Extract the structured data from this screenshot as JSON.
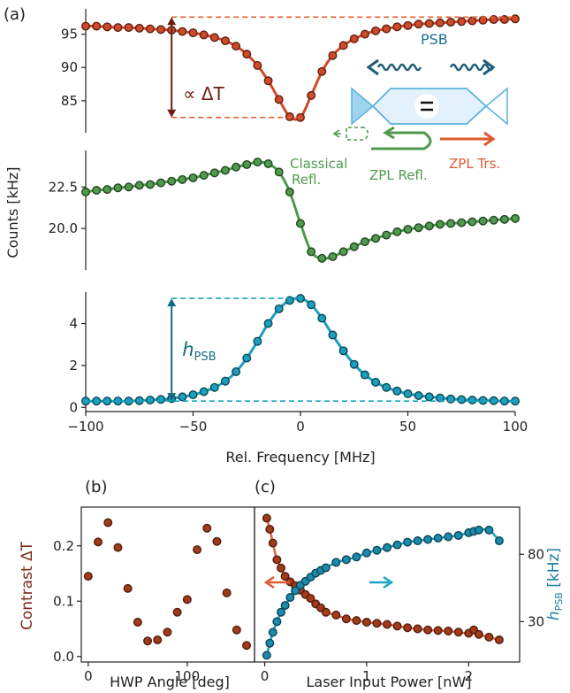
{
  "chart_data": [
    {
      "panel": "(a)",
      "type": "scatter",
      "xlabel": "Rel. Frequency [MHz]",
      "ylabel": "Counts [kHz]",
      "xlim": [
        -100,
        100
      ],
      "xticks": [
        -100,
        -50,
        0,
        50,
        100
      ],
      "subplots": [
        {
          "id": "transmission",
          "ylim": [
            80.2,
            98.8
          ],
          "yticks": [
            85,
            90,
            95
          ],
          "color": "#d04a2a",
          "annotation": "∝ ΔT",
          "x": [
            -100,
            -95,
            -90,
            -85,
            -80,
            -75,
            -70,
            -65,
            -60,
            -55,
            -50,
            -45,
            -40,
            -35,
            -30,
            -25,
            -20,
            -15,
            -10,
            -5,
            0,
            5,
            10,
            15,
            20,
            25,
            30,
            35,
            40,
            45,
            50,
            55,
            60,
            65,
            70,
            75,
            80,
            85,
            90,
            95,
            100
          ],
          "y": [
            96.2,
            96.2,
            96.1,
            96.0,
            96.0,
            95.9,
            95.8,
            95.7,
            95.6,
            95.4,
            95.2,
            94.9,
            94.5,
            94.0,
            93.2,
            92.0,
            90.3,
            88.0,
            85.2,
            82.6,
            82.5,
            85.8,
            89.4,
            91.8,
            93.3,
            94.3,
            95.0,
            95.5,
            95.8,
            96.1,
            96.3,
            96.5,
            96.6,
            96.7,
            96.8,
            96.9,
            97.0,
            97.1,
            97.2,
            97.2,
            97.3
          ]
        },
        {
          "id": "reflection",
          "ylim": [
            17.5,
            24.7
          ],
          "yticks": [
            20.0,
            22.5
          ],
          "color": "#4e9a4e",
          "x": [
            -100,
            -95,
            -90,
            -85,
            -80,
            -75,
            -70,
            -65,
            -60,
            -55,
            -50,
            -45,
            -40,
            -35,
            -30,
            -25,
            -20,
            -15,
            -10,
            -5,
            0,
            5,
            10,
            15,
            20,
            25,
            30,
            35,
            40,
            45,
            50,
            55,
            60,
            65,
            70,
            75,
            80,
            85,
            90,
            95,
            100
          ],
          "y": [
            22.2,
            22.3,
            22.35,
            22.45,
            22.5,
            22.6,
            22.65,
            22.75,
            22.85,
            22.95,
            23.05,
            23.2,
            23.35,
            23.5,
            23.7,
            23.85,
            24.0,
            23.9,
            23.4,
            22.2,
            20.3,
            18.6,
            18.2,
            18.3,
            18.6,
            18.9,
            19.2,
            19.4,
            19.6,
            19.8,
            19.95,
            20.05,
            20.15,
            20.25,
            20.3,
            20.35,
            20.4,
            20.45,
            20.5,
            20.55,
            20.6
          ]
        },
        {
          "id": "psb",
          "ylim": [
            -0.2,
            5.5
          ],
          "yticks": [
            0,
            2,
            4
          ],
          "color": "#1b9fbf",
          "annotation": "h",
          "annotation_sub": "PSB",
          "x": [
            -100,
            -95,
            -90,
            -85,
            -80,
            -75,
            -70,
            -65,
            -60,
            -55,
            -50,
            -45,
            -40,
            -35,
            -30,
            -25,
            -20,
            -15,
            -10,
            -5,
            0,
            5,
            10,
            15,
            20,
            25,
            30,
            35,
            40,
            45,
            50,
            55,
            60,
            65,
            70,
            75,
            80,
            85,
            90,
            95,
            100
          ],
          "y": [
            0.3,
            0.3,
            0.3,
            0.3,
            0.3,
            0.32,
            0.35,
            0.38,
            0.42,
            0.5,
            0.6,
            0.75,
            0.95,
            1.25,
            1.7,
            2.35,
            3.15,
            4.0,
            4.7,
            5.1,
            5.2,
            4.9,
            4.25,
            3.45,
            2.7,
            2.05,
            1.55,
            1.2,
            0.95,
            0.78,
            0.65,
            0.56,
            0.5,
            0.45,
            0.4,
            0.37,
            0.35,
            0.33,
            0.32,
            0.3,
            0.3
          ]
        }
      ],
      "inset": {
        "psb_label": "PSB",
        "minus_sign": "−",
        "classical_refl_line1": "Classical",
        "classical_refl_line2": "Refl.",
        "zpl_refl": "ZPL Refl.",
        "zpl_trs": "ZPL Trs."
      }
    },
    {
      "panel": "(b)",
      "type": "scatter",
      "xlabel": "HWP Angle [deg]",
      "ylabel": "Contrast  ΔT",
      "xlim": [
        -7,
        168
      ],
      "ylim": [
        -0.01,
        0.27
      ],
      "xticks": [
        0,
        100
      ],
      "yticks": [
        0.0,
        0.1,
        0.2
      ],
      "ytick_labels": [
        "0.0",
        "0.1",
        "0.2"
      ],
      "color": "#a33a1a",
      "x": [
        0,
        10,
        20,
        30,
        40,
        50,
        60,
        70,
        80,
        90,
        100,
        110,
        120,
        130,
        140,
        150,
        160
      ],
      "y": [
        0.145,
        0.207,
        0.242,
        0.197,
        0.123,
        0.062,
        0.028,
        0.03,
        0.044,
        0.08,
        0.103,
        0.193,
        0.232,
        0.208,
        0.115,
        0.048,
        0.02
      ]
    },
    {
      "panel": "(c)",
      "type": "scatter",
      "xlabel": "Laser Input Power [nW]",
      "ylabel_right": "h",
      "ylabel_right_sub": "PSB",
      "ylabel_right_unit": " [kHz]",
      "xlim": [
        -0.1,
        2.5
      ],
      "xticks": [
        0,
        1,
        2
      ],
      "ylim_left": [
        -0.01,
        0.27
      ],
      "ylim_right": [
        0,
        115
      ],
      "yticks_right": [
        30,
        80
      ],
      "series": [
        {
          "axis": "left",
          "color": "#a33a1a",
          "fit_color": "#e06a40",
          "x": [
            0.02,
            0.05,
            0.08,
            0.12,
            0.16,
            0.2,
            0.25,
            0.3,
            0.35,
            0.4,
            0.45,
            0.5,
            0.55,
            0.6,
            0.7,
            0.8,
            0.9,
            1.0,
            1.1,
            1.2,
            1.3,
            1.4,
            1.5,
            1.6,
            1.7,
            1.8,
            1.9,
            2.0,
            2.05,
            2.1,
            2.2,
            2.3
          ],
          "y": [
            0.25,
            0.23,
            0.205,
            0.175,
            0.16,
            0.145,
            0.135,
            0.128,
            0.12,
            0.112,
            0.105,
            0.095,
            0.088,
            0.08,
            0.075,
            0.068,
            0.065,
            0.062,
            0.06,
            0.058,
            0.055,
            0.052,
            0.05,
            0.048,
            0.047,
            0.046,
            0.044,
            0.042,
            0.048,
            0.04,
            0.035,
            0.03
          ]
        },
        {
          "axis": "right",
          "color": "#1b8aab",
          "fit_color": "#1ba5c2",
          "x": [
            0.02,
            0.05,
            0.08,
            0.12,
            0.16,
            0.2,
            0.25,
            0.3,
            0.35,
            0.4,
            0.45,
            0.5,
            0.55,
            0.6,
            0.7,
            0.8,
            0.9,
            1.0,
            1.1,
            1.2,
            1.3,
            1.4,
            1.5,
            1.6,
            1.7,
            1.8,
            1.9,
            2.0,
            2.05,
            2.1,
            2.2,
            2.3
          ],
          "y": [
            5,
            14,
            22,
            30,
            37,
            42,
            48,
            53,
            57,
            60,
            63,
            66,
            68,
            70,
            74,
            76,
            78,
            81,
            83,
            85,
            87,
            89,
            90,
            91,
            92,
            93,
            94,
            96,
            97,
            98,
            98,
            90
          ]
        }
      ]
    }
  ]
}
